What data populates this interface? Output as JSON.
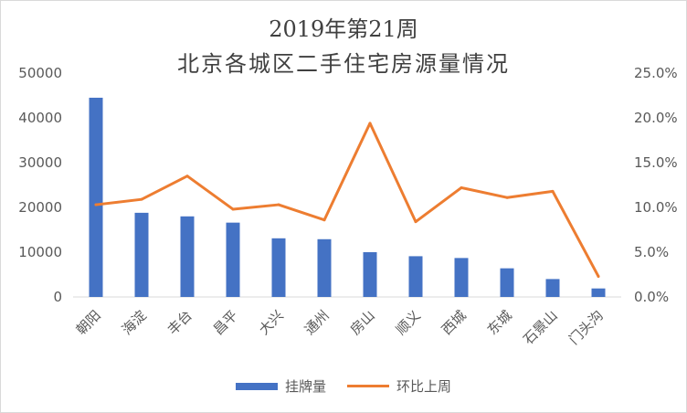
{
  "chart_data": {
    "type": "bar",
    "title": "2019年第21周",
    "subtitle": "北京各城区二手住宅房源量情况",
    "categories": [
      "朝阳",
      "海淀",
      "丰台",
      "昌平",
      "大兴",
      "通州",
      "房山",
      "顺义",
      "西城",
      "东城",
      "石景山",
      "门头沟"
    ],
    "series": [
      {
        "name": "挂牌量",
        "type": "bar",
        "axis": "left",
        "color": "#4472c4",
        "values": [
          44500,
          18800,
          18000,
          16600,
          13100,
          12900,
          10000,
          9100,
          8700,
          6400,
          4000,
          1900
        ]
      },
      {
        "name": "环比上周",
        "type": "line",
        "axis": "right",
        "color": "#ed7d31",
        "values": [
          10.3,
          10.9,
          13.5,
          9.8,
          10.3,
          8.6,
          19.4,
          8.4,
          12.2,
          11.1,
          11.8,
          2.3
        ]
      }
    ],
    "y_left": {
      "min": 0,
      "max": 50000,
      "ticks": [
        "0",
        "10000",
        "20000",
        "30000",
        "40000",
        "50000"
      ]
    },
    "y_right": {
      "min": 0,
      "max": 25,
      "ticks": [
        "0.0%",
        "5.0%",
        "10.0%",
        "15.0%",
        "20.0%",
        "25.0%"
      ]
    },
    "grid": false,
    "legend_position": "bottom"
  }
}
